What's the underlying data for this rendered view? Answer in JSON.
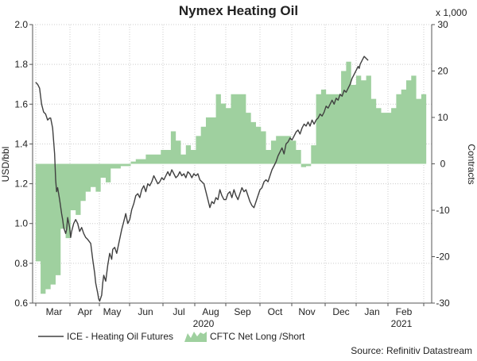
{
  "chart_data": {
    "type": "line+area",
    "title": "Nymex Heating Oil",
    "ylabel_left": "USD/bbl",
    "ylabel_right": "Contracts",
    "right_multiplier": "x 1,000",
    "ylim_left": [
      0.6,
      2.0
    ],
    "ylim_right": [
      -30,
      30
    ],
    "yticks_left": [
      "0.6",
      "0.8",
      "1.0",
      "1.2",
      "1.4",
      "1.6",
      "1.8",
      "2.0"
    ],
    "yticks_right": [
      "-30",
      "-20",
      "-10",
      "0",
      "10",
      "20",
      "30"
    ],
    "x_months": [
      "Mar",
      "Apr",
      "May",
      "Jun",
      "Jul",
      "Aug",
      "Sep",
      "Oct",
      "Nov",
      "Dec",
      "Jan",
      "Feb"
    ],
    "x_years": [
      "2020",
      "2021"
    ],
    "x_range_days": [
      0,
      385
    ],
    "series": [
      {
        "name": "ICE - Heating Oil Futures",
        "type": "line",
        "color": "#404040",
        "axis": "left",
        "points": [
          [
            0,
            1.71
          ],
          [
            2,
            1.7
          ],
          [
            4,
            1.68
          ],
          [
            6,
            1.6
          ],
          [
            8,
            1.56
          ],
          [
            10,
            1.55
          ],
          [
            12,
            1.52
          ],
          [
            14,
            1.53
          ],
          [
            15,
            1.53
          ],
          [
            17,
            1.48
          ],
          [
            19,
            1.35
          ],
          [
            20,
            1.22
          ],
          [
            21,
            1.16
          ],
          [
            22,
            1.18
          ],
          [
            24,
            1.12
          ],
          [
            26,
            1.05
          ],
          [
            27,
            1.02
          ],
          [
            28,
            0.98
          ],
          [
            30,
            0.95
          ],
          [
            31,
            0.97
          ],
          [
            32,
            1.03
          ],
          [
            34,
            0.98
          ],
          [
            35,
            0.93
          ],
          [
            36,
            0.96
          ],
          [
            38,
            1.0
          ],
          [
            40,
            1.02
          ],
          [
            42,
            1.0
          ],
          [
            44,
            0.96
          ],
          [
            46,
            0.98
          ],
          [
            48,
            0.95
          ],
          [
            50,
            0.93
          ],
          [
            52,
            0.92
          ],
          [
            55,
            0.9
          ],
          [
            57,
            0.82
          ],
          [
            59,
            0.75
          ],
          [
            60,
            0.7
          ],
          [
            62,
            0.65
          ],
          [
            63,
            0.62
          ],
          [
            64,
            0.61
          ],
          [
            66,
            0.64
          ],
          [
            67,
            0.7
          ],
          [
            68,
            0.74
          ],
          [
            70,
            0.71
          ],
          [
            72,
            0.79
          ],
          [
            74,
            0.85
          ],
          [
            76,
            0.82
          ],
          [
            77,
            0.87
          ],
          [
            79,
            0.88
          ],
          [
            81,
            0.85
          ],
          [
            83,
            0.9
          ],
          [
            86,
            0.97
          ],
          [
            88,
            1.01
          ],
          [
            90,
            1.05
          ],
          [
            92,
            1.0
          ],
          [
            94,
            1.02
          ],
          [
            96,
            1.07
          ],
          [
            98,
            1.1
          ],
          [
            100,
            1.14
          ],
          [
            102,
            1.15
          ],
          [
            104,
            1.13
          ],
          [
            106,
            1.17
          ],
          [
            108,
            1.19
          ],
          [
            110,
            1.16
          ],
          [
            112,
            1.2
          ],
          [
            114,
            1.19
          ],
          [
            116,
            1.21
          ],
          [
            118,
            1.24
          ],
          [
            120,
            1.22
          ],
          [
            122,
            1.2
          ],
          [
            124,
            1.21
          ],
          [
            126,
            1.23
          ],
          [
            128,
            1.22
          ],
          [
            130,
            1.24
          ],
          [
            132,
            1.26
          ],
          [
            134,
            1.24
          ],
          [
            136,
            1.27
          ],
          [
            138,
            1.25
          ],
          [
            140,
            1.23
          ],
          [
            142,
            1.24
          ],
          [
            144,
            1.26
          ],
          [
            146,
            1.24
          ],
          [
            148,
            1.25
          ],
          [
            150,
            1.23
          ],
          [
            152,
            1.26
          ],
          [
            154,
            1.25
          ],
          [
            156,
            1.23
          ],
          [
            158,
            1.25
          ],
          [
            160,
            1.24
          ],
          [
            162,
            1.25
          ],
          [
            164,
            1.22
          ],
          [
            166,
            1.21
          ],
          [
            168,
            1.2
          ],
          [
            170,
            1.16
          ],
          [
            172,
            1.12
          ],
          [
            174,
            1.08
          ],
          [
            176,
            1.11
          ],
          [
            178,
            1.1
          ],
          [
            180,
            1.13
          ],
          [
            182,
            1.12
          ],
          [
            184,
            1.17
          ],
          [
            186,
            1.14
          ],
          [
            188,
            1.12
          ],
          [
            190,
            1.12
          ],
          [
            192,
            1.15
          ],
          [
            194,
            1.16
          ],
          [
            196,
            1.13
          ],
          [
            198,
            1.17
          ],
          [
            200,
            1.14
          ],
          [
            202,
            1.12
          ],
          [
            204,
            1.15
          ],
          [
            206,
            1.18
          ],
          [
            208,
            1.16
          ],
          [
            210,
            1.17
          ],
          [
            212,
            1.14
          ],
          [
            214,
            1.11
          ],
          [
            216,
            1.09
          ],
          [
            218,
            1.08
          ],
          [
            220,
            1.11
          ],
          [
            222,
            1.14
          ],
          [
            224,
            1.17
          ],
          [
            226,
            1.18
          ],
          [
            228,
            1.21
          ],
          [
            230,
            1.22
          ],
          [
            232,
            1.21
          ],
          [
            234,
            1.24
          ],
          [
            236,
            1.27
          ],
          [
            238,
            1.29
          ],
          [
            240,
            1.31
          ],
          [
            242,
            1.34
          ],
          [
            244,
            1.36
          ],
          [
            246,
            1.38
          ],
          [
            248,
            1.35
          ],
          [
            250,
            1.4
          ],
          [
            252,
            1.41
          ],
          [
            254,
            1.43
          ],
          [
            256,
            1.42
          ],
          [
            258,
            1.44
          ],
          [
            260,
            1.46
          ],
          [
            262,
            1.47
          ],
          [
            264,
            1.45
          ],
          [
            266,
            1.48
          ],
          [
            268,
            1.5
          ],
          [
            270,
            1.49
          ],
          [
            272,
            1.51
          ],
          [
            274,
            1.49
          ],
          [
            276,
            1.52
          ],
          [
            278,
            1.5
          ],
          [
            280,
            1.52
          ],
          [
            282,
            1.53
          ],
          [
            284,
            1.55
          ],
          [
            286,
            1.54
          ],
          [
            288,
            1.56
          ],
          [
            290,
            1.59
          ],
          [
            292,
            1.58
          ],
          [
            294,
            1.6
          ],
          [
            296,
            1.62
          ],
          [
            298,
            1.6
          ],
          [
            300,
            1.63
          ],
          [
            302,
            1.62
          ],
          [
            304,
            1.65
          ],
          [
            306,
            1.64
          ],
          [
            308,
            1.67
          ],
          [
            310,
            1.66
          ],
          [
            312,
            1.68
          ],
          [
            314,
            1.7
          ],
          [
            316,
            1.73
          ],
          [
            318,
            1.75
          ],
          [
            320,
            1.77
          ],
          [
            322,
            1.79
          ],
          [
            323,
            1.78
          ],
          [
            324,
            1.8
          ],
          [
            326,
            1.82
          ],
          [
            328,
            1.84
          ],
          [
            330,
            1.83
          ],
          [
            332,
            1.82
          ]
        ]
      },
      {
        "name": "CFTC Net Long /Short",
        "type": "area",
        "color": "#9fd09f",
        "axis": "right",
        "steps": [
          [
            0,
            -21
          ],
          [
            5,
            -28
          ],
          [
            10,
            -27
          ],
          [
            15,
            -26
          ],
          [
            20,
            -24
          ],
          [
            25,
            -14
          ],
          [
            30,
            -16
          ],
          [
            35,
            -10
          ],
          [
            40,
            -11
          ],
          [
            45,
            -8
          ],
          [
            50,
            -6
          ],
          [
            55,
            -5
          ],
          [
            60,
            -6
          ],
          [
            65,
            -3
          ],
          [
            70,
            -4
          ],
          [
            75,
            -1
          ],
          [
            80,
            -1
          ],
          [
            85,
            -0.5
          ],
          [
            90,
            -0.5
          ],
          [
            95,
            0.5
          ],
          [
            100,
            1
          ],
          [
            105,
            1
          ],
          [
            110,
            2
          ],
          [
            115,
            2
          ],
          [
            120,
            2
          ],
          [
            125,
            3
          ],
          [
            130,
            3
          ],
          [
            135,
            7
          ],
          [
            140,
            5
          ],
          [
            145,
            2
          ],
          [
            150,
            4
          ],
          [
            155,
            3
          ],
          [
            160,
            6
          ],
          [
            165,
            8
          ],
          [
            170,
            10
          ],
          [
            175,
            10
          ],
          [
            180,
            15
          ],
          [
            185,
            13
          ],
          [
            190,
            12
          ],
          [
            195,
            15
          ],
          [
            200,
            15
          ],
          [
            205,
            15
          ],
          [
            210,
            11
          ],
          [
            215,
            9
          ],
          [
            220,
            8
          ],
          [
            225,
            7
          ],
          [
            230,
            3
          ],
          [
            235,
            5
          ],
          [
            240,
            6
          ],
          [
            245,
            6
          ],
          [
            250,
            6
          ],
          [
            255,
            5
          ],
          [
            260,
            3
          ],
          [
            265,
            -0.7
          ],
          [
            270,
            -0.5
          ],
          [
            275,
            4
          ],
          [
            280,
            15
          ],
          [
            285,
            16
          ],
          [
            290,
            15
          ],
          [
            295,
            15
          ],
          [
            300,
            15
          ],
          [
            305,
            20
          ],
          [
            310,
            22
          ],
          [
            315,
            17
          ],
          [
            320,
            19
          ],
          [
            325,
            18
          ],
          [
            330,
            19
          ],
          [
            335,
            14
          ],
          [
            340,
            12
          ],
          [
            345,
            11
          ],
          [
            350,
            11
          ],
          [
            355,
            12
          ],
          [
            360,
            15
          ],
          [
            365,
            16
          ],
          [
            370,
            18
          ],
          [
            375,
            19
          ],
          [
            380,
            14
          ],
          [
            385,
            15
          ]
        ],
        "x_end": 390
      }
    ],
    "legend": "bottom-left",
    "source": "Source: Refinitiv Datastream",
    "grid": true
  }
}
